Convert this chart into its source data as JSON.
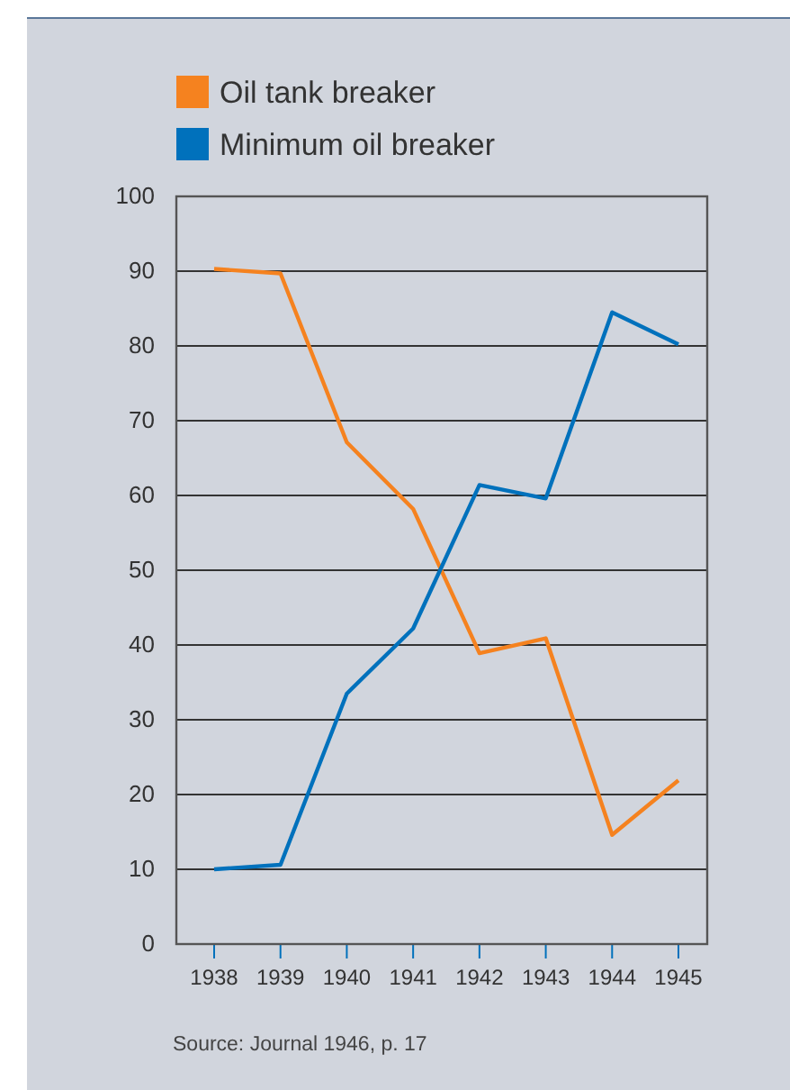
{
  "chart_data": {
    "type": "line",
    "categories": [
      "1938",
      "1939",
      "1940",
      "1941",
      "1942",
      "1943",
      "1944",
      "1945"
    ],
    "series": [
      {
        "name": "Oil tank breaker",
        "color": "#f5821f",
        "values": [
          90.3,
          89.7,
          67.1,
          58.2,
          38.9,
          40.9,
          14.6,
          21.9
        ]
      },
      {
        "name": "Minimum oil breaker",
        "color": "#0071bc",
        "values": [
          10,
          10.6,
          33.5,
          42.2,
          61.4,
          59.6,
          84.5,
          80.2
        ]
      }
    ],
    "ylim": [
      0,
      100
    ],
    "yticks": [
      0,
      10,
      20,
      30,
      40,
      50,
      60,
      70,
      80,
      90,
      100
    ],
    "grid": "y",
    "legend": "top left",
    "marker": "none",
    "line_style": "solid",
    "annotations": [
      "Source: Journal 1946, p. 17"
    ]
  }
}
